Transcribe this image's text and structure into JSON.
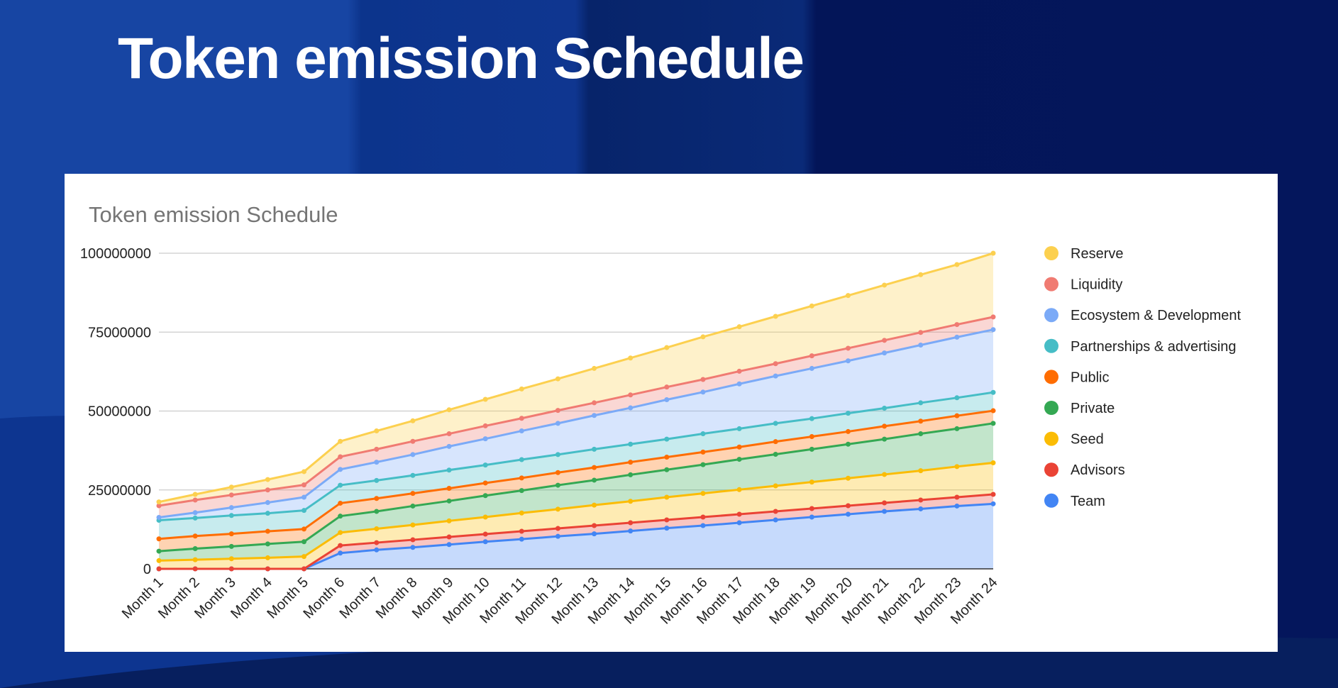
{
  "slide": {
    "title": "Token emission Schedule"
  },
  "chart_data": {
    "type": "area",
    "stacked": true,
    "markers": true,
    "title": "Token emission Schedule",
    "xlabel": "",
    "ylabel": "",
    "ylim": [
      0,
      100000000
    ],
    "yticks": [
      "0",
      "25000000",
      "50000000",
      "75000000",
      "100000000"
    ],
    "grid": true,
    "legend": "right",
    "categories": [
      "Month 1",
      "Month 2",
      "Month 3",
      "Month 4",
      "Month 5",
      "Month 6",
      "Month 7",
      "Month 8",
      "Month 9",
      "Month 10",
      "Month 11",
      "Month 12",
      "Month 13",
      "Month 14",
      "Month 15",
      "Month 16",
      "Month 17",
      "Month 18",
      "Month 19",
      "Month 20",
      "Month 21",
      "Month 22",
      "Month 23",
      "Month 24"
    ],
    "series": [
      {
        "name": "Team",
        "color": "#4285f4",
        "values": [
          0,
          0,
          0,
          0,
          0,
          5000000.0,
          6000000.0,
          6800000.0,
          7700000.0,
          8600000.0,
          9400000.0,
          10300000.0,
          11100000.0,
          12000000.0,
          12900000.0,
          13700000.0,
          14600000.0,
          15500000.0,
          16400000.0,
          17300000.0,
          18200000.0,
          19000000.0,
          19900000.0,
          20600000.0
        ]
      },
      {
        "name": "Advisors",
        "color": "#ea4335",
        "values": [
          0,
          0,
          0,
          0,
          0,
          2400000.0,
          2300000.0,
          2400000.0,
          2400000.0,
          2400000.0,
          2500000.0,
          2500000.0,
          2600000.0,
          2600000.0,
          2600000.0,
          2700000.0,
          2700000.0,
          2700000.0,
          2700000.0,
          2700000.0,
          2700000.0,
          2800000.0,
          2800000.0,
          3000000.0
        ]
      },
      {
        "name": "Seed",
        "color": "#fbbc04",
        "values": [
          2600000.0,
          2900000.0,
          3200000.0,
          3500000.0,
          3900000.0,
          4100000.0,
          4400000.0,
          4700000.0,
          5100000.0,
          5400000.0,
          5800000.0,
          6100000.0,
          6500000.0,
          6800000.0,
          7200000.0,
          7500000.0,
          7800000.0,
          8100000.0,
          8400000.0,
          8700000.0,
          9000000.0,
          9300000.0,
          9700000.0,
          10000000.0
        ]
      },
      {
        "name": "Private",
        "color": "#34a853",
        "values": [
          3000000.0,
          3500000.0,
          3900000.0,
          4400000.0,
          4700000.0,
          5200000.0,
          5500000.0,
          6000000.0,
          6300000.0,
          6800000.0,
          7100000.0,
          7600000.0,
          7900000.0,
          8400000.0,
          8700000.0,
          9100000.0,
          9600000.0,
          10000000.0,
          10400000.0,
          10800000.0,
          11200000.0,
          11700000.0,
          12000000.0,
          12500000.0
        ]
      },
      {
        "name": "Public",
        "color": "#ff6d01",
        "values": [
          3900000.0,
          4000000.0,
          4000000.0,
          4000000.0,
          4000000.0,
          4100000.0,
          4100000.0,
          4000000.0,
          4000000.0,
          4000000.0,
          4000000.0,
          4000000.0,
          4000000.0,
          4000000.0,
          4000000.0,
          4000000.0,
          3900000.0,
          4000000.0,
          4000000.0,
          4000000.0,
          4100000.0,
          4000000.0,
          4100000.0,
          4000000.0
        ]
      },
      {
        "name": "Partnerships & advertising",
        "color": "#46bdc6",
        "values": [
          5900000.0,
          5700000.0,
          5800000.0,
          5700000.0,
          5900000.0,
          5700000.0,
          5700000.0,
          5700000.0,
          5800000.0,
          5700000.0,
          5800000.0,
          5700000.0,
          5800000.0,
          5700000.0,
          5700000.0,
          5800000.0,
          5800000.0,
          5800000.0,
          5700000.0,
          5800000.0,
          5700000.0,
          5800000.0,
          5700000.0,
          5800000.0
        ]
      },
      {
        "name": "Ecosystem & Development",
        "color": "#7baaf7",
        "values": [
          900000.0,
          1700000.0,
          2500000.0,
          3400000.0,
          4200000.0,
          5000000.0,
          5800000.0,
          6600000.0,
          7500000.0,
          8300000.0,
          9100000.0,
          9900000.0,
          10700000.0,
          11500000.0,
          12500000.0,
          13200000.0,
          14200000.0,
          15000000.0,
          15900000.0,
          16600000.0,
          17500000.0,
          18300000.0,
          19200000.0,
          19900000.0
        ]
      },
      {
        "name": "Liquidity",
        "color": "#f07b72",
        "values": [
          3700000.0,
          4000000.0,
          4000000.0,
          4000000.0,
          3900000.0,
          4000000.0,
          4100000.0,
          4200000.0,
          4000000.0,
          4100000.0,
          4000000.0,
          4100000.0,
          4000000.0,
          4100000.0,
          4000000.0,
          4000000.0,
          4000000.0,
          3900000.0,
          4000000.0,
          4000000.0,
          4000000.0,
          4000000.0,
          4000000.0,
          4000000.0
        ]
      },
      {
        "name": "Reserve",
        "color": "#fcd04f",
        "values": [
          1200000.0,
          1800000.0,
          2500000.0,
          3300000.0,
          4200000.0,
          4900000.0,
          5800000.0,
          6500000.0,
          7600000.0,
          8400000.0,
          9300000.0,
          10000000.0,
          10900000.0,
          11700000.0,
          12500000.0,
          13500000.0,
          14100000.0,
          15000000.0,
          15800000.0,
          16700000.0,
          17500000.0,
          18300000.0,
          19000000.0,
          20200000.0
        ]
      }
    ]
  }
}
